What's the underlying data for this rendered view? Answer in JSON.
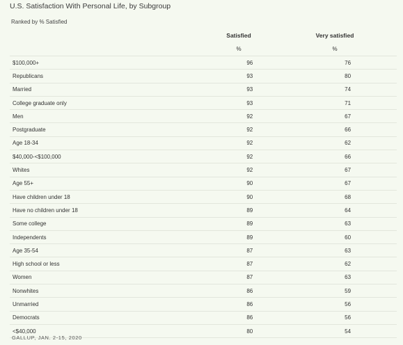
{
  "chart_data": {
    "type": "table",
    "title": "U.S. Satisfaction With Personal Life, by Subgroup",
    "subtitle": "Ranked by % Satisfied",
    "columns": [
      "Satisfied",
      "Very satisfied"
    ],
    "units": [
      "%",
      "%"
    ],
    "rows": [
      {
        "label": "$100,000+",
        "satisfied": "96",
        "very_satisfied": "76"
      },
      {
        "label": "Republicans",
        "satisfied": "93",
        "very_satisfied": "80"
      },
      {
        "label": "Married",
        "satisfied": "93",
        "very_satisfied": "74"
      },
      {
        "label": "College graduate only",
        "satisfied": "93",
        "very_satisfied": "71"
      },
      {
        "label": "Men",
        "satisfied": "92",
        "very_satisfied": "67"
      },
      {
        "label": "Postgraduate",
        "satisfied": "92",
        "very_satisfied": "66"
      },
      {
        "label": "Age 18-34",
        "satisfied": "92",
        "very_satisfied": "62"
      },
      {
        "label": "$40,000-<$100,000",
        "satisfied": "92",
        "very_satisfied": "66"
      },
      {
        "label": "Whites",
        "satisfied": "92",
        "very_satisfied": "67"
      },
      {
        "label": "Age 55+",
        "satisfied": "90",
        "very_satisfied": "67"
      },
      {
        "label": "Have children under 18",
        "satisfied": "90",
        "very_satisfied": "68"
      },
      {
        "label": "Have no children under 18",
        "satisfied": "89",
        "very_satisfied": "64"
      },
      {
        "label": "Some college",
        "satisfied": "89",
        "very_satisfied": "63"
      },
      {
        "label": "Independents",
        "satisfied": "89",
        "very_satisfied": "60"
      },
      {
        "label": "Age 35-54",
        "satisfied": "87",
        "very_satisfied": "63"
      },
      {
        "label": "High school or less",
        "satisfied": "87",
        "very_satisfied": "62"
      },
      {
        "label": "Women",
        "satisfied": "87",
        "very_satisfied": "63"
      },
      {
        "label": "Nonwhites",
        "satisfied": "86",
        "very_satisfied": "59"
      },
      {
        "label": "Unmarried",
        "satisfied": "86",
        "very_satisfied": "56"
      },
      {
        "label": "Democrats",
        "satisfied": "86",
        "very_satisfied": "56"
      },
      {
        "label": "<$40,000",
        "satisfied": "80",
        "very_satisfied": "54"
      }
    ],
    "source": "GALLUP, JAN. 2-15, 2020"
  }
}
